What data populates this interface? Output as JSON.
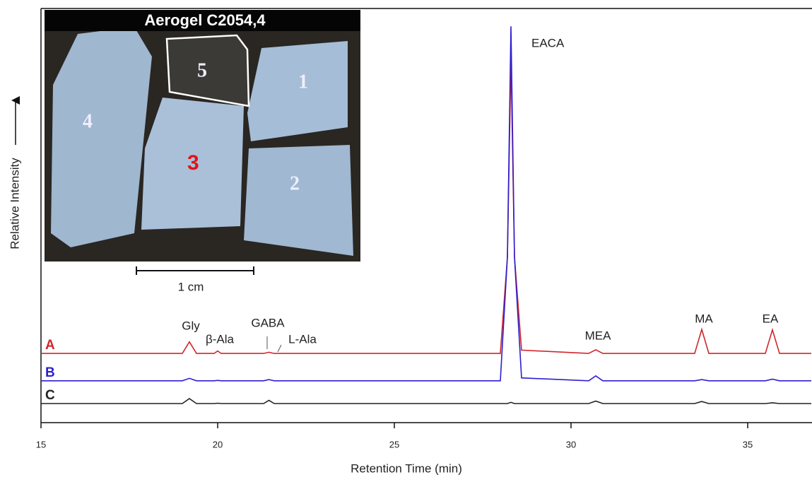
{
  "chart_data": {
    "type": "line",
    "x_label": "Retention Time (min)",
    "y_label": "Relative Intensity",
    "x": [
      15,
      19.0,
      19.2,
      19.4,
      19.9,
      20.0,
      20.1,
      21.3,
      21.45,
      21.6,
      28.0,
      28.2,
      28.3,
      28.4,
      28.6,
      30.5,
      30.7,
      30.9,
      33.5,
      33.7,
      33.9,
      35.5,
      35.7,
      35.9,
      36.8
    ],
    "series": [
      {
        "name": "A",
        "color": "#d0262c",
        "values": [
          16.7,
          16.7,
          19.5,
          16.7,
          16.7,
          17.3,
          16.7,
          16.7,
          17.0,
          16.7,
          16.7,
          40,
          87.5,
          40,
          17.5,
          16.7,
          17.6,
          16.7,
          16.7,
          22.5,
          16.7,
          16.7,
          22.4,
          16.7,
          16.7
        ]
      },
      {
        "name": "B",
        "color": "#2d1fd0",
        "values": [
          10.1,
          10.1,
          10.7,
          10.1,
          10.1,
          10.2,
          10.1,
          10.1,
          10.4,
          10.1,
          10.1,
          40,
          95.7,
          40,
          10.8,
          10.1,
          11.3,
          10.1,
          10.1,
          10.4,
          10.1,
          10.1,
          10.5,
          10.1,
          10.1
        ]
      },
      {
        "name": "C",
        "color": "#222222",
        "values": [
          4.6,
          4.6,
          5.8,
          4.6,
          4.6,
          4.7,
          4.6,
          4.6,
          5.4,
          4.6,
          4.6,
          4.6,
          4.9,
          4.6,
          4.6,
          4.6,
          5.2,
          4.6,
          4.6,
          5.1,
          4.6,
          4.6,
          4.8,
          4.6,
          4.6
        ]
      }
    ],
    "annotations": [
      "Gly",
      "β-Ala",
      "GABA",
      "L-Ala",
      "EACA",
      "MEA",
      "MA",
      "EA"
    ],
    "xlim": [
      15,
      36.8
    ],
    "xticks": [
      15,
      20,
      25,
      30,
      35
    ],
    "ylim": [
      0,
      100
    ]
  },
  "inset": {
    "title": "Aerogel C2054,4",
    "pieces": [
      "1",
      "2",
      "3",
      "4",
      "5"
    ],
    "scale": "1 cm"
  }
}
